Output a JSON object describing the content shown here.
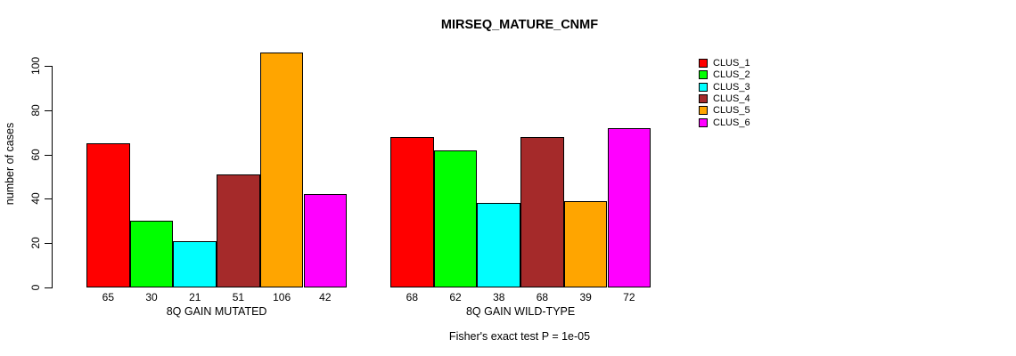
{
  "chart_data": {
    "type": "bar",
    "title": "MIRSEQ_MATURE_CNMF",
    "ylabel": "number of cases",
    "xlabel": "",
    "yticks": [
      0,
      20,
      40,
      60,
      80,
      100
    ],
    "ylim": [
      0,
      107
    ],
    "grid": false,
    "legend_position": "top-right-outside-plot",
    "legend": [
      "CLUS_1",
      "CLUS_2",
      "CLUS_3",
      "CLUS_4",
      "CLUS_5",
      "CLUS_6"
    ],
    "colors": [
      "#FF0000",
      "#00FF00",
      "#00FFFF",
      "#A52A2A",
      "#FFA500",
      "#FF00FF"
    ],
    "groups": [
      {
        "label": "8Q GAIN MUTATED",
        "values": [
          65,
          30,
          21,
          51,
          106,
          42
        ]
      },
      {
        "label": "8Q GAIN WILD-TYPE",
        "values": [
          68,
          62,
          38,
          68,
          39,
          72
        ]
      }
    ],
    "footnote": "Fisher's exact test P = 1e-05",
    "axis_color": "#000000",
    "background_color": "#FFFFFF"
  }
}
